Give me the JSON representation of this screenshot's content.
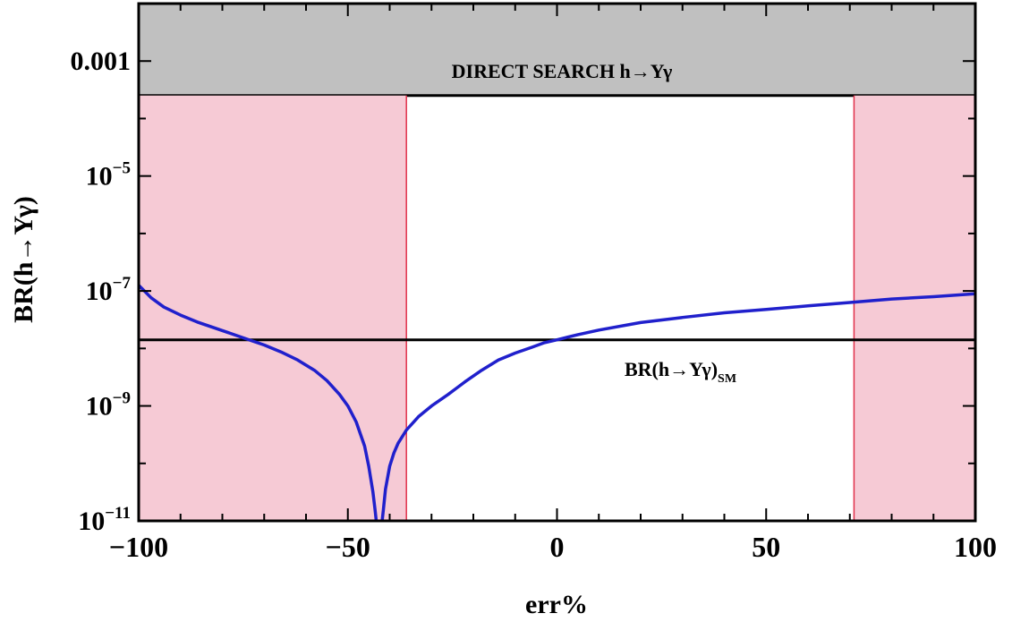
{
  "chart_data": {
    "type": "line",
    "xlabel": "err%",
    "ylabel": "BR(h→Υγ)",
    "xlim": [
      -100,
      100
    ],
    "ylim_log10": [
      -11,
      -2
    ],
    "yscale": "log",
    "grid": false,
    "x_ticks": [
      {
        "value": -100,
        "label": "−100"
      },
      {
        "value": -50,
        "label": "−50"
      },
      {
        "value": 0,
        "label": "0"
      },
      {
        "value": 50,
        "label": "50"
      },
      {
        "value": 100,
        "label": "100"
      }
    ],
    "y_ticks": [
      {
        "log10": -3,
        "label": "0.001",
        "base": "",
        "exp": ""
      },
      {
        "log10": -5,
        "label": "",
        "base": "10",
        "exp": "−5"
      },
      {
        "log10": -7,
        "label": "",
        "base": "10",
        "exp": "−7"
      },
      {
        "log10": -9,
        "label": "",
        "base": "10",
        "exp": "−9"
      },
      {
        "log10": -11,
        "label": "",
        "base": "10",
        "exp": "−11"
      }
    ],
    "regions": [
      {
        "kind": "direct-search",
        "ymin_log10": -3.6,
        "ymax_log10": -2,
        "color": "#c0c0c0",
        "label": "DIRECT SEARCH h→Υγ"
      },
      {
        "kind": "excluded-left",
        "xmin": -100,
        "xmax": -36,
        "color": "#f6cad5"
      },
      {
        "kind": "excluded-right",
        "xmin": 71,
        "xmax": 100,
        "color": "#f6cad5"
      }
    ],
    "sm_line": {
      "log10": -7.85,
      "label_main": "BR(h→Υγ)",
      "label_sub": "SM",
      "color": "#000000"
    },
    "series": [
      {
        "color": "#2020cc",
        "x": [
          -100,
          -97,
          -94,
          -90,
          -86,
          -82,
          -78,
          -74,
          -70,
          -66,
          -62,
          -58,
          -55,
          -52,
          -50,
          -48,
          -46,
          -45,
          -44,
          -43.5,
          -43.2
        ],
        "y_log10": [
          -6.9,
          -7.12,
          -7.28,
          -7.42,
          -7.54,
          -7.64,
          -7.74,
          -7.84,
          -7.94,
          -8.06,
          -8.2,
          -8.38,
          -8.56,
          -8.8,
          -9.0,
          -9.28,
          -9.7,
          -10.05,
          -10.5,
          -10.8,
          -11
        ]
      },
      {
        "color": "#2020cc",
        "x": [
          -41.8,
          -41.5,
          -41,
          -40,
          -39,
          -38,
          -36,
          -33,
          -30,
          -26,
          -22,
          -18,
          -14,
          -10,
          -6,
          -3,
          0,
          5,
          10,
          20,
          30,
          40,
          50,
          60,
          70,
          80,
          90,
          100
        ],
        "y_log10": [
          -11,
          -10.8,
          -10.45,
          -10.05,
          -9.82,
          -9.65,
          -9.42,
          -9.18,
          -9.0,
          -8.8,
          -8.58,
          -8.38,
          -8.2,
          -8.08,
          -7.98,
          -7.9,
          -7.85,
          -7.76,
          -7.68,
          -7.55,
          -7.46,
          -7.38,
          -7.32,
          -7.26,
          -7.2,
          -7.14,
          -7.1,
          -7.05
        ]
      }
    ]
  }
}
